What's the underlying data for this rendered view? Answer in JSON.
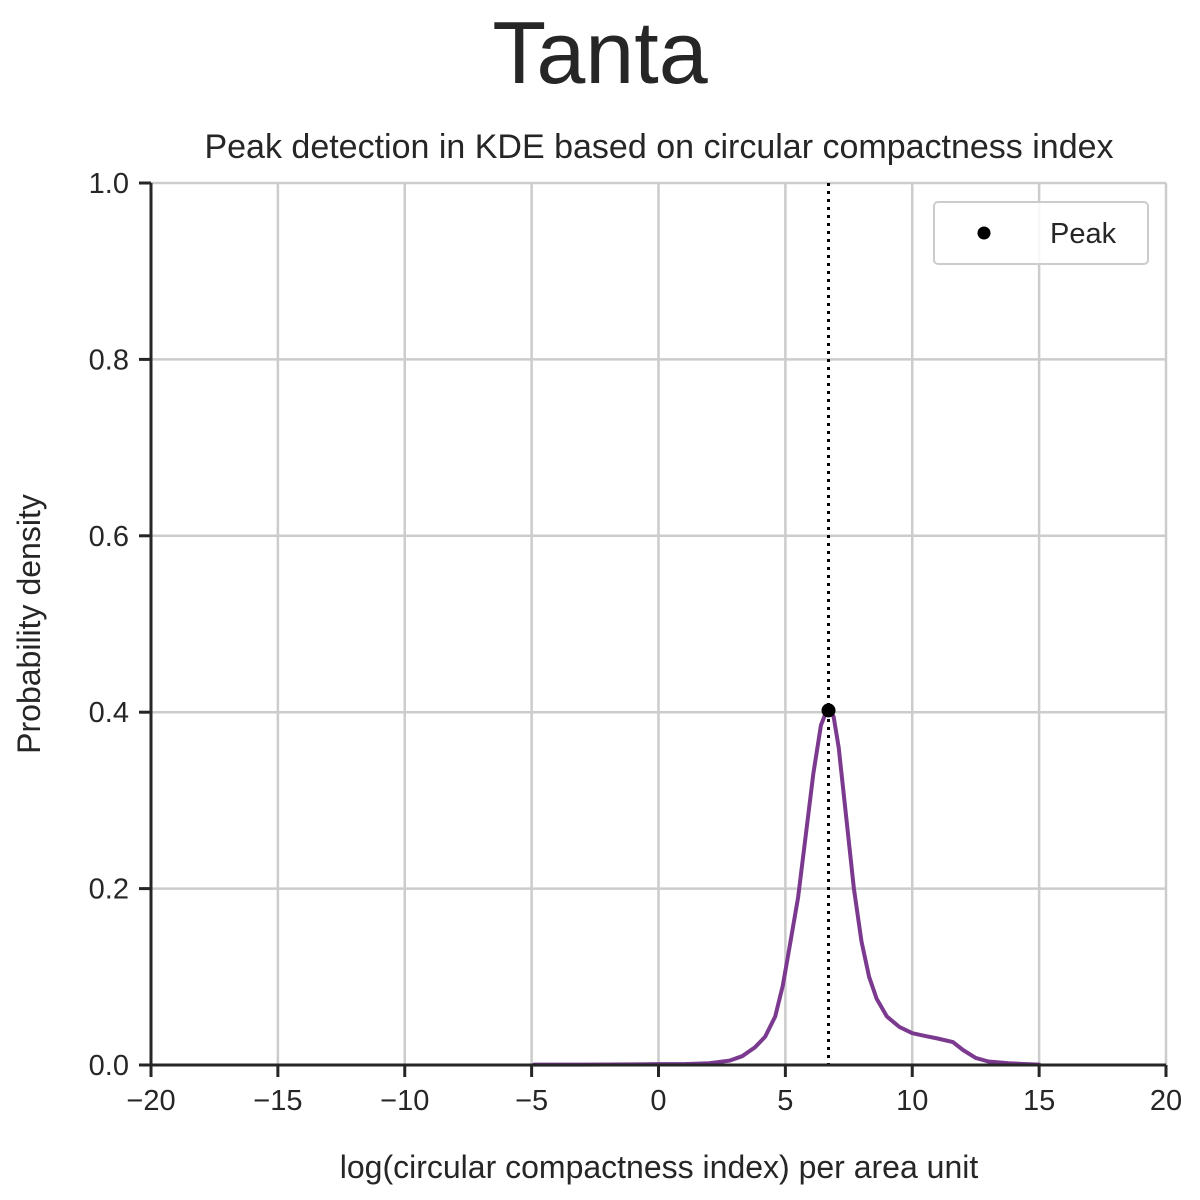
{
  "suptitle": "Tanta",
  "chart_data": {
    "type": "line",
    "title": "Peak detection in KDE based on circular compactness index",
    "xlabel": "log(circular compactness index) per area unit",
    "ylabel": "Probability density",
    "xlim": [
      -20,
      20
    ],
    "ylim": [
      0,
      1.0
    ],
    "xticks": [
      -20,
      -15,
      -10,
      -5,
      0,
      5,
      10,
      15,
      20
    ],
    "xtick_labels": [
      "−20",
      "−15",
      "−10",
      "−5",
      "0",
      "5",
      "10",
      "15",
      "20"
    ],
    "yticks": [
      0,
      0.2,
      0.4,
      0.6,
      0.8,
      1.0
    ],
    "ytick_labels": [
      "0.0",
      "0.2",
      "0.4",
      "0.6",
      "0.8",
      "1.0"
    ],
    "grid": true,
    "legend": {
      "position": "top-right",
      "entries": [
        "Peak"
      ]
    },
    "series": [
      {
        "kind": "kde",
        "color": "#7b3a8f",
        "x": [
          -4.9,
          -3.0,
          -1.0,
          0.0,
          1.0,
          2.0,
          2.8,
          3.3,
          3.8,
          4.2,
          4.6,
          4.9,
          5.2,
          5.5,
          5.8,
          6.1,
          6.4,
          6.6,
          6.75,
          6.9,
          7.1,
          7.4,
          7.7,
          8.0,
          8.3,
          8.6,
          9.0,
          9.5,
          10.0,
          10.5,
          11.0,
          11.6,
          12.0,
          12.5,
          13.0,
          13.8,
          14.5,
          15.0
        ],
        "y": [
          0.0005,
          0.0005,
          0.0007,
          0.001,
          0.001,
          0.002,
          0.005,
          0.01,
          0.02,
          0.032,
          0.055,
          0.09,
          0.14,
          0.19,
          0.26,
          0.33,
          0.385,
          0.4,
          0.402,
          0.395,
          0.36,
          0.28,
          0.2,
          0.14,
          0.1,
          0.075,
          0.055,
          0.043,
          0.036,
          0.033,
          0.03,
          0.026,
          0.017,
          0.008,
          0.004,
          0.002,
          0.001,
          0.0005
        ]
      }
    ],
    "peak": {
      "name": "Peak",
      "x": 6.7,
      "y": 0.402,
      "color": "#000000"
    },
    "vline": {
      "x": 6.7,
      "style": "dotted",
      "color": "#000000"
    }
  }
}
